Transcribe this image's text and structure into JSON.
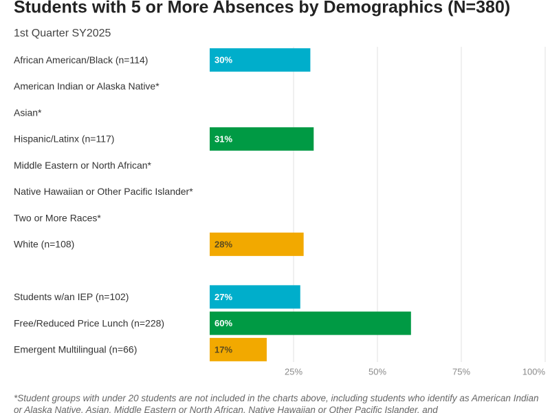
{
  "chart_data": {
    "type": "bar",
    "orientation": "horizontal",
    "title": "Students with 5 or More Absences by Demographics (N=380)",
    "subtitle": "1st Quarter SY2025",
    "categories": [
      "African American/Black (n=114)",
      "American Indian or Alaska Native*",
      "Asian*",
      "Hispanic/Latinx (n=117)",
      "Middle Eastern or North African*",
      "Native Hawaiian or Other Pacific Islander*",
      "Two or More Races*",
      "White (n=108)",
      null,
      "Students w/an IEP (n=102)",
      "Free/Reduced Price Lunch (n=228)",
      "Emergent Multilingual (n=66)"
    ],
    "values": [
      30,
      null,
      null,
      31,
      null,
      null,
      null,
      28,
      null,
      27,
      60,
      17
    ],
    "value_labels": [
      "30%",
      null,
      null,
      "31%",
      null,
      null,
      null,
      "28%",
      null,
      "27%",
      "60%",
      "17%"
    ],
    "colors": [
      "#00aecb",
      null,
      null,
      "#009a44",
      null,
      null,
      null,
      "#f2a900",
      null,
      "#00aecb",
      "#009a44",
      "#f2a900"
    ],
    "xlim": [
      0,
      100
    ],
    "xticks": [
      {
        "value": 25,
        "label": "25%"
      },
      {
        "value": 50,
        "label": "50%"
      },
      {
        "value": 75,
        "label": "75%"
      },
      {
        "value": 100,
        "label": "100%"
      }
    ],
    "grid": true,
    "note": "*Student groups with under 20 students are not included in the charts above, including students who identify as American Indian or Alaska Native, Asian, Middle Eastern or North African, Native Hawaiian or Other Pacific Islander, and"
  }
}
